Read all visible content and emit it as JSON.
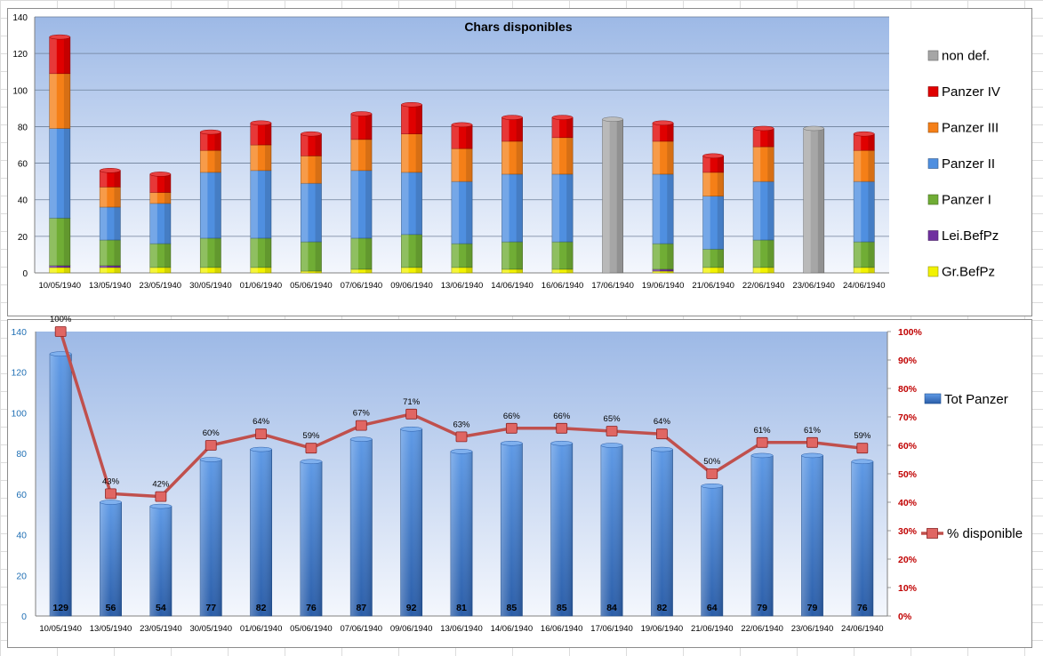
{
  "chart_data": [
    {
      "type": "bar",
      "stacked": true,
      "title": "Chars disponibles",
      "categories": [
        "10/05/1940",
        "13/05/1940",
        "23/05/1940",
        "30/05/1940",
        "01/06/1940",
        "05/06/1940",
        "07/06/1940",
        "09/06/1940",
        "13/06/1940",
        "14/06/1940",
        "16/06/1940",
        "17/06/1940",
        "19/06/1940",
        "21/06/1940",
        "22/06/1940",
        "23/06/1940",
        "24/06/1940"
      ],
      "ylim": [
        0,
        140
      ],
      "yticks": [
        0,
        20,
        40,
        60,
        80,
        100,
        120,
        140
      ],
      "grid": true,
      "legend": "right",
      "series": [
        {
          "name": "Gr.BefPz",
          "color": "#f2f200",
          "values": [
            3,
            3,
            3,
            3,
            3,
            1,
            2,
            3,
            3,
            2,
            2,
            0,
            1,
            3,
            3,
            0,
            3
          ]
        },
        {
          "name": "Lei.BefPz",
          "color": "#7030a0",
          "values": [
            1,
            1,
            0,
            0,
            0,
            0,
            0,
            0,
            0,
            0,
            0,
            0,
            1,
            0,
            0,
            0,
            0
          ]
        },
        {
          "name": "Panzer I",
          "color": "#70ad35",
          "values": [
            26,
            14,
            13,
            16,
            16,
            16,
            17,
            18,
            13,
            15,
            15,
            0,
            14,
            10,
            15,
            0,
            14
          ]
        },
        {
          "name": "Panzer II",
          "color": "#4f8fe0",
          "values": [
            49,
            18,
            22,
            36,
            37,
            32,
            37,
            34,
            34,
            37,
            37,
            0,
            38,
            29,
            32,
            0,
            33
          ]
        },
        {
          "name": "Panzer III",
          "color": "#f57f17",
          "values": [
            30,
            11,
            6,
            12,
            14,
            15,
            17,
            21,
            18,
            18,
            20,
            0,
            18,
            13,
            19,
            0,
            17
          ]
        },
        {
          "name": "Panzer IV",
          "color": "#e00000",
          "values": [
            20,
            9,
            10,
            10,
            12,
            12,
            14,
            16,
            13,
            13,
            11,
            0,
            10,
            9,
            10,
            0,
            9
          ]
        },
        {
          "name": "non def.",
          "color": "#a6a6a6",
          "values": [
            0,
            0,
            0,
            0,
            0,
            0,
            0,
            0,
            0,
            0,
            0,
            84,
            0,
            0,
            0,
            79,
            0
          ]
        }
      ]
    },
    {
      "type": "bar",
      "combo": "bar+line",
      "categories": [
        "10/05/1940",
        "13/05/1940",
        "23/05/1940",
        "30/05/1940",
        "01/06/1940",
        "05/06/1940",
        "07/06/1940",
        "09/06/1940",
        "13/06/1940",
        "14/06/1940",
        "16/06/1940",
        "17/06/1940",
        "19/06/1940",
        "21/06/1940",
        "22/06/1940",
        "23/06/1940",
        "24/06/1940"
      ],
      "ylim": [
        0,
        140
      ],
      "yticks": [
        0,
        20,
        40,
        60,
        80,
        100,
        120,
        140
      ],
      "y2lim": [
        0,
        100
      ],
      "y2ticks": [
        "0%",
        "10%",
        "20%",
        "30%",
        "40%",
        "50%",
        "60%",
        "70%",
        "80%",
        "90%",
        "100%"
      ],
      "legend": "right",
      "bar_series": {
        "name": "Tot Panzer",
        "color": "#3a78cf",
        "values": [
          129,
          56,
          54,
          77,
          82,
          76,
          87,
          92,
          81,
          85,
          85,
          84,
          82,
          64,
          79,
          79,
          76
        ]
      },
      "line_series": {
        "name": "% disponible",
        "color": "#c0504d",
        "values": [
          100,
          43,
          42,
          60,
          64,
          59,
          67,
          71,
          63,
          66,
          66,
          65,
          64,
          50,
          61,
          61,
          59
        ],
        "labels": [
          "100%",
          "43%",
          "42%",
          "60%",
          "64%",
          "59%",
          "67%",
          "71%",
          "63%",
          "66%",
          "66%",
          "65%",
          "64%",
          "50%",
          "61%",
          "61%",
          "59%"
        ]
      },
      "y_axis_color": "#1f6fb4",
      "y2_axis_color": "#c00000"
    }
  ]
}
